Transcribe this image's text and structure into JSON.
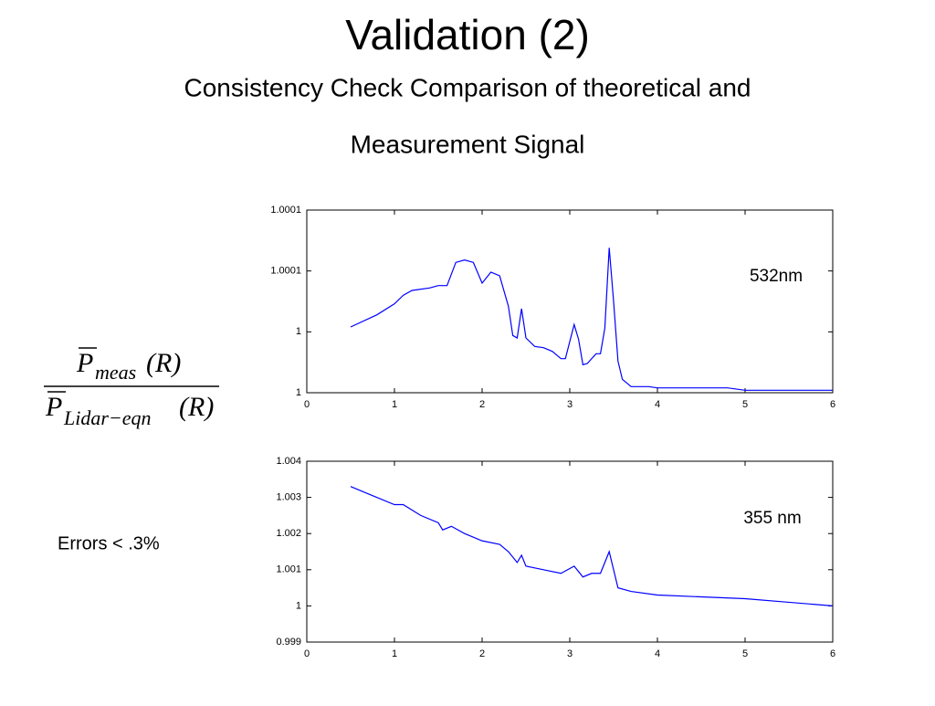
{
  "title": "Validation (2)",
  "subtitle": [
    "Consistency Check Comparison of theoretical and",
    "Measurement Signal"
  ],
  "formula": {
    "numerator_symbol": "P",
    "numerator_subscript": "meas",
    "argument": "(R)",
    "denominator_symbol": "P",
    "denominator_subscript": "Lidar−eqn"
  },
  "note": "Errors < .3%",
  "chart_data": [
    {
      "type": "line",
      "annotation": "532nm",
      "xlim": [
        0,
        6
      ],
      "xticks": [
        0,
        1,
        2,
        3,
        4,
        5,
        6
      ],
      "ylim": [
        1,
        1.00015
      ],
      "yticks": [
        {
          "value": 1,
          "label": "1"
        },
        {
          "value": 1.00005,
          "label": "1"
        },
        {
          "value": 1.0001,
          "label": "1.0001"
        },
        {
          "value": 1.00015,
          "label": "1.0001"
        }
      ],
      "series": [
        {
          "color": "#0000ff",
          "x": [
            0.5,
            0.8,
            1.0,
            1.1,
            1.2,
            1.4,
            1.5,
            1.6,
            1.7,
            1.8,
            1.9,
            2.0,
            2.1,
            2.2,
            2.3,
            2.35,
            2.4,
            2.45,
            2.5,
            2.6,
            2.7,
            2.8,
            2.9,
            2.95,
            3.05,
            3.1,
            3.15,
            3.2,
            3.3,
            3.35,
            3.4,
            3.45,
            3.5,
            3.55,
            3.6,
            3.7,
            3.9,
            4.0,
            4.5,
            4.8,
            5.0,
            5.1,
            6.0
          ],
          "values": [
            1.000054,
            1.000064,
            1.000073,
            1.00008,
            1.000084,
            1.000086,
            1.000088,
            1.000088,
            1.000107,
            1.000109,
            1.000107,
            1.00009,
            1.000099,
            1.000096,
            1.000071,
            1.000047,
            1.000045,
            1.000069,
            1.000045,
            1.000038,
            1.000037,
            1.000034,
            1.000028,
            1.000028,
            1.000056,
            1.000044,
            1.000023,
            1.000024,
            1.000032,
            1.000032,
            1.000053,
            1.000119,
            1.000075,
            1.000026,
            1.000011,
            1.000005,
            1.000005,
            1.000004,
            1.000004,
            1.000004,
            1.000002,
            1.000002,
            1.000002
          ]
        }
      ]
    },
    {
      "type": "line",
      "annotation": "355 nm",
      "xlim": [
        0,
        6
      ],
      "xticks": [
        0,
        1,
        2,
        3,
        4,
        5,
        6
      ],
      "ylim": [
        0.999,
        1.004
      ],
      "yticks": [
        0.999,
        1,
        1.001,
        1.002,
        1.003,
        1.004
      ],
      "series": [
        {
          "color": "#0000ff",
          "x": [
            0.5,
            0.7,
            1.0,
            1.1,
            1.3,
            1.5,
            1.55,
            1.65,
            1.8,
            2.0,
            2.2,
            2.3,
            2.4,
            2.45,
            2.5,
            2.7,
            2.9,
            3.05,
            3.15,
            3.25,
            3.35,
            3.45,
            3.55,
            3.7,
            4.0,
            4.5,
            5.0,
            5.5,
            6.0
          ],
          "values": [
            1.0033,
            1.0031,
            1.0028,
            1.0028,
            1.0025,
            1.0023,
            1.0021,
            1.0022,
            1.002,
            1.0018,
            1.0017,
            1.0015,
            1.0012,
            1.0014,
            1.0011,
            1.001,
            1.0009,
            1.0011,
            1.0008,
            1.0009,
            1.0009,
            1.0015,
            1.0005,
            1.0004,
            1.0003,
            1.00025,
            1.0002,
            1.0001,
            1.0
          ]
        }
      ]
    }
  ]
}
